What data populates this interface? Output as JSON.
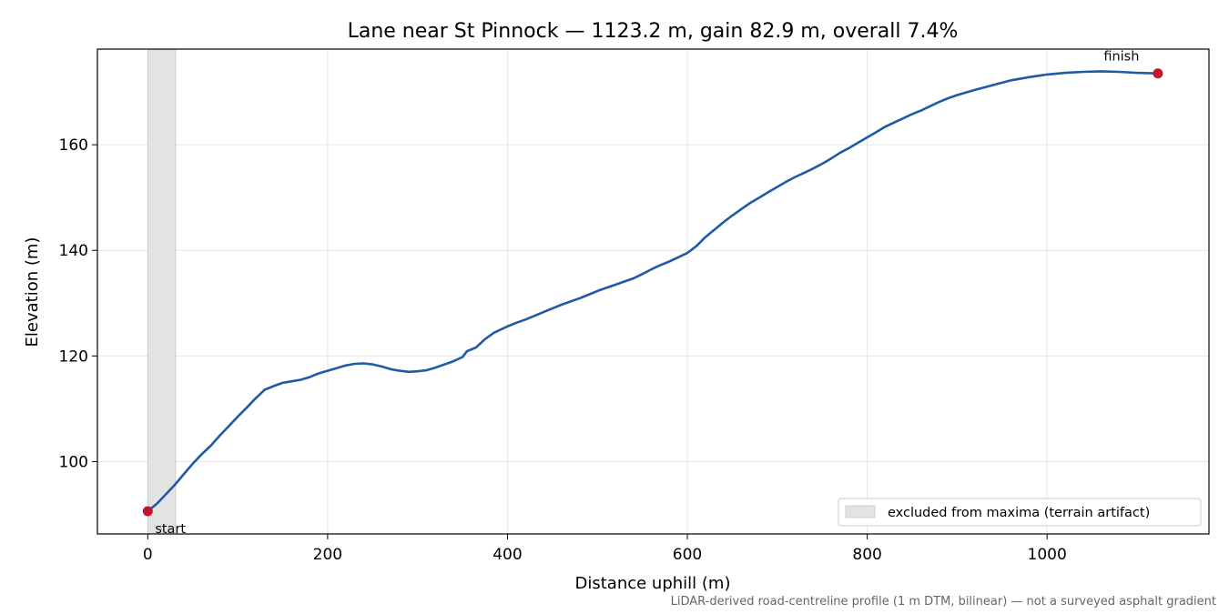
{
  "chart_data": {
    "type": "line",
    "title": "Lane near St Pinnock — 1123.2 m, gain 82.9 m, overall 7.4%",
    "xlabel": "Distance uphill (m)",
    "ylabel": "Elevation (m)",
    "xlim": [
      -56,
      1180
    ],
    "ylim": [
      86.3,
      178.1
    ],
    "x_ticks": [
      0,
      200,
      400,
      600,
      800,
      1000
    ],
    "y_ticks": [
      100,
      120,
      140,
      160
    ],
    "grid": true,
    "legend_placement": "lower-right",
    "excluded_band": {
      "x_range": [
        0,
        31
      ],
      "label": "excluded from maxima (terrain artifact)",
      "color": "#e3e3e2"
    },
    "series": [
      {
        "color": "#1f5aa8",
        "points": [
          [
            0,
            90.6
          ],
          [
            10,
            92.0
          ],
          [
            20,
            93.8
          ],
          [
            30,
            95.6
          ],
          [
            40,
            97.6
          ],
          [
            50,
            99.6
          ],
          [
            60,
            101.4
          ],
          [
            70,
            103.0
          ],
          [
            80,
            104.9
          ],
          [
            90,
            106.7
          ],
          [
            100,
            108.5
          ],
          [
            110,
            110.2
          ],
          [
            120,
            112.0
          ],
          [
            130,
            113.6
          ],
          [
            140,
            114.3
          ],
          [
            150,
            114.9
          ],
          [
            160,
            115.2
          ],
          [
            170,
            115.5
          ],
          [
            180,
            116.0
          ],
          [
            190,
            116.7
          ],
          [
            200,
            117.2
          ],
          [
            210,
            117.7
          ],
          [
            220,
            118.2
          ],
          [
            230,
            118.5
          ],
          [
            240,
            118.6
          ],
          [
            250,
            118.4
          ],
          [
            260,
            118.0
          ],
          [
            270,
            117.5
          ],
          [
            280,
            117.2
          ],
          [
            290,
            117.0
          ],
          [
            300,
            117.1
          ],
          [
            310,
            117.3
          ],
          [
            320,
            117.8
          ],
          [
            330,
            118.4
          ],
          [
            340,
            119.0
          ],
          [
            350,
            119.8
          ],
          [
            355,
            120.9
          ],
          [
            365,
            121.6
          ],
          [
            375,
            123.2
          ],
          [
            385,
            124.4
          ],
          [
            400,
            125.6
          ],
          [
            410,
            126.3
          ],
          [
            420,
            126.9
          ],
          [
            430,
            127.6
          ],
          [
            440,
            128.3
          ],
          [
            450,
            129.0
          ],
          [
            460,
            129.7
          ],
          [
            470,
            130.3
          ],
          [
            480,
            130.9
          ],
          [
            490,
            131.6
          ],
          [
            500,
            132.3
          ],
          [
            510,
            132.9
          ],
          [
            520,
            133.5
          ],
          [
            530,
            134.1
          ],
          [
            540,
            134.7
          ],
          [
            550,
            135.5
          ],
          [
            560,
            136.4
          ],
          [
            570,
            137.2
          ],
          [
            580,
            137.9
          ],
          [
            590,
            138.7
          ],
          [
            600,
            139.5
          ],
          [
            610,
            140.8
          ],
          [
            620,
            142.5
          ],
          [
            630,
            143.9
          ],
          [
            640,
            145.3
          ],
          [
            650,
            146.6
          ],
          [
            660,
            147.8
          ],
          [
            670,
            149.0
          ],
          [
            680,
            150.0
          ],
          [
            690,
            151.0
          ],
          [
            700,
            152.0
          ],
          [
            710,
            153.0
          ],
          [
            720,
            153.9
          ],
          [
            730,
            154.7
          ],
          [
            740,
            155.5
          ],
          [
            750,
            156.4
          ],
          [
            760,
            157.4
          ],
          [
            770,
            158.5
          ],
          [
            780,
            159.4
          ],
          [
            790,
            160.4
          ],
          [
            800,
            161.4
          ],
          [
            810,
            162.4
          ],
          [
            820,
            163.4
          ],
          [
            830,
            164.2
          ],
          [
            840,
            165.0
          ],
          [
            850,
            165.8
          ],
          [
            860,
            166.5
          ],
          [
            870,
            167.3
          ],
          [
            880,
            168.1
          ],
          [
            890,
            168.8
          ],
          [
            900,
            169.4
          ],
          [
            920,
            170.4
          ],
          [
            940,
            171.3
          ],
          [
            960,
            172.2
          ],
          [
            980,
            172.8
          ],
          [
            1000,
            173.3
          ],
          [
            1020,
            173.6
          ],
          [
            1040,
            173.8
          ],
          [
            1060,
            173.9
          ],
          [
            1080,
            173.8
          ],
          [
            1100,
            173.6
          ],
          [
            1123.2,
            173.5
          ]
        ]
      }
    ],
    "markers": [
      {
        "label": "start",
        "x": 0,
        "y": 90.6,
        "color": "#c0182a"
      },
      {
        "label": "finish",
        "x": 1123.2,
        "y": 173.5,
        "color": "#c0182a"
      }
    ],
    "footnote": "LiDAR-derived road-centreline profile (1 m DTM, bilinear) — not a surveyed asphalt gradient"
  }
}
